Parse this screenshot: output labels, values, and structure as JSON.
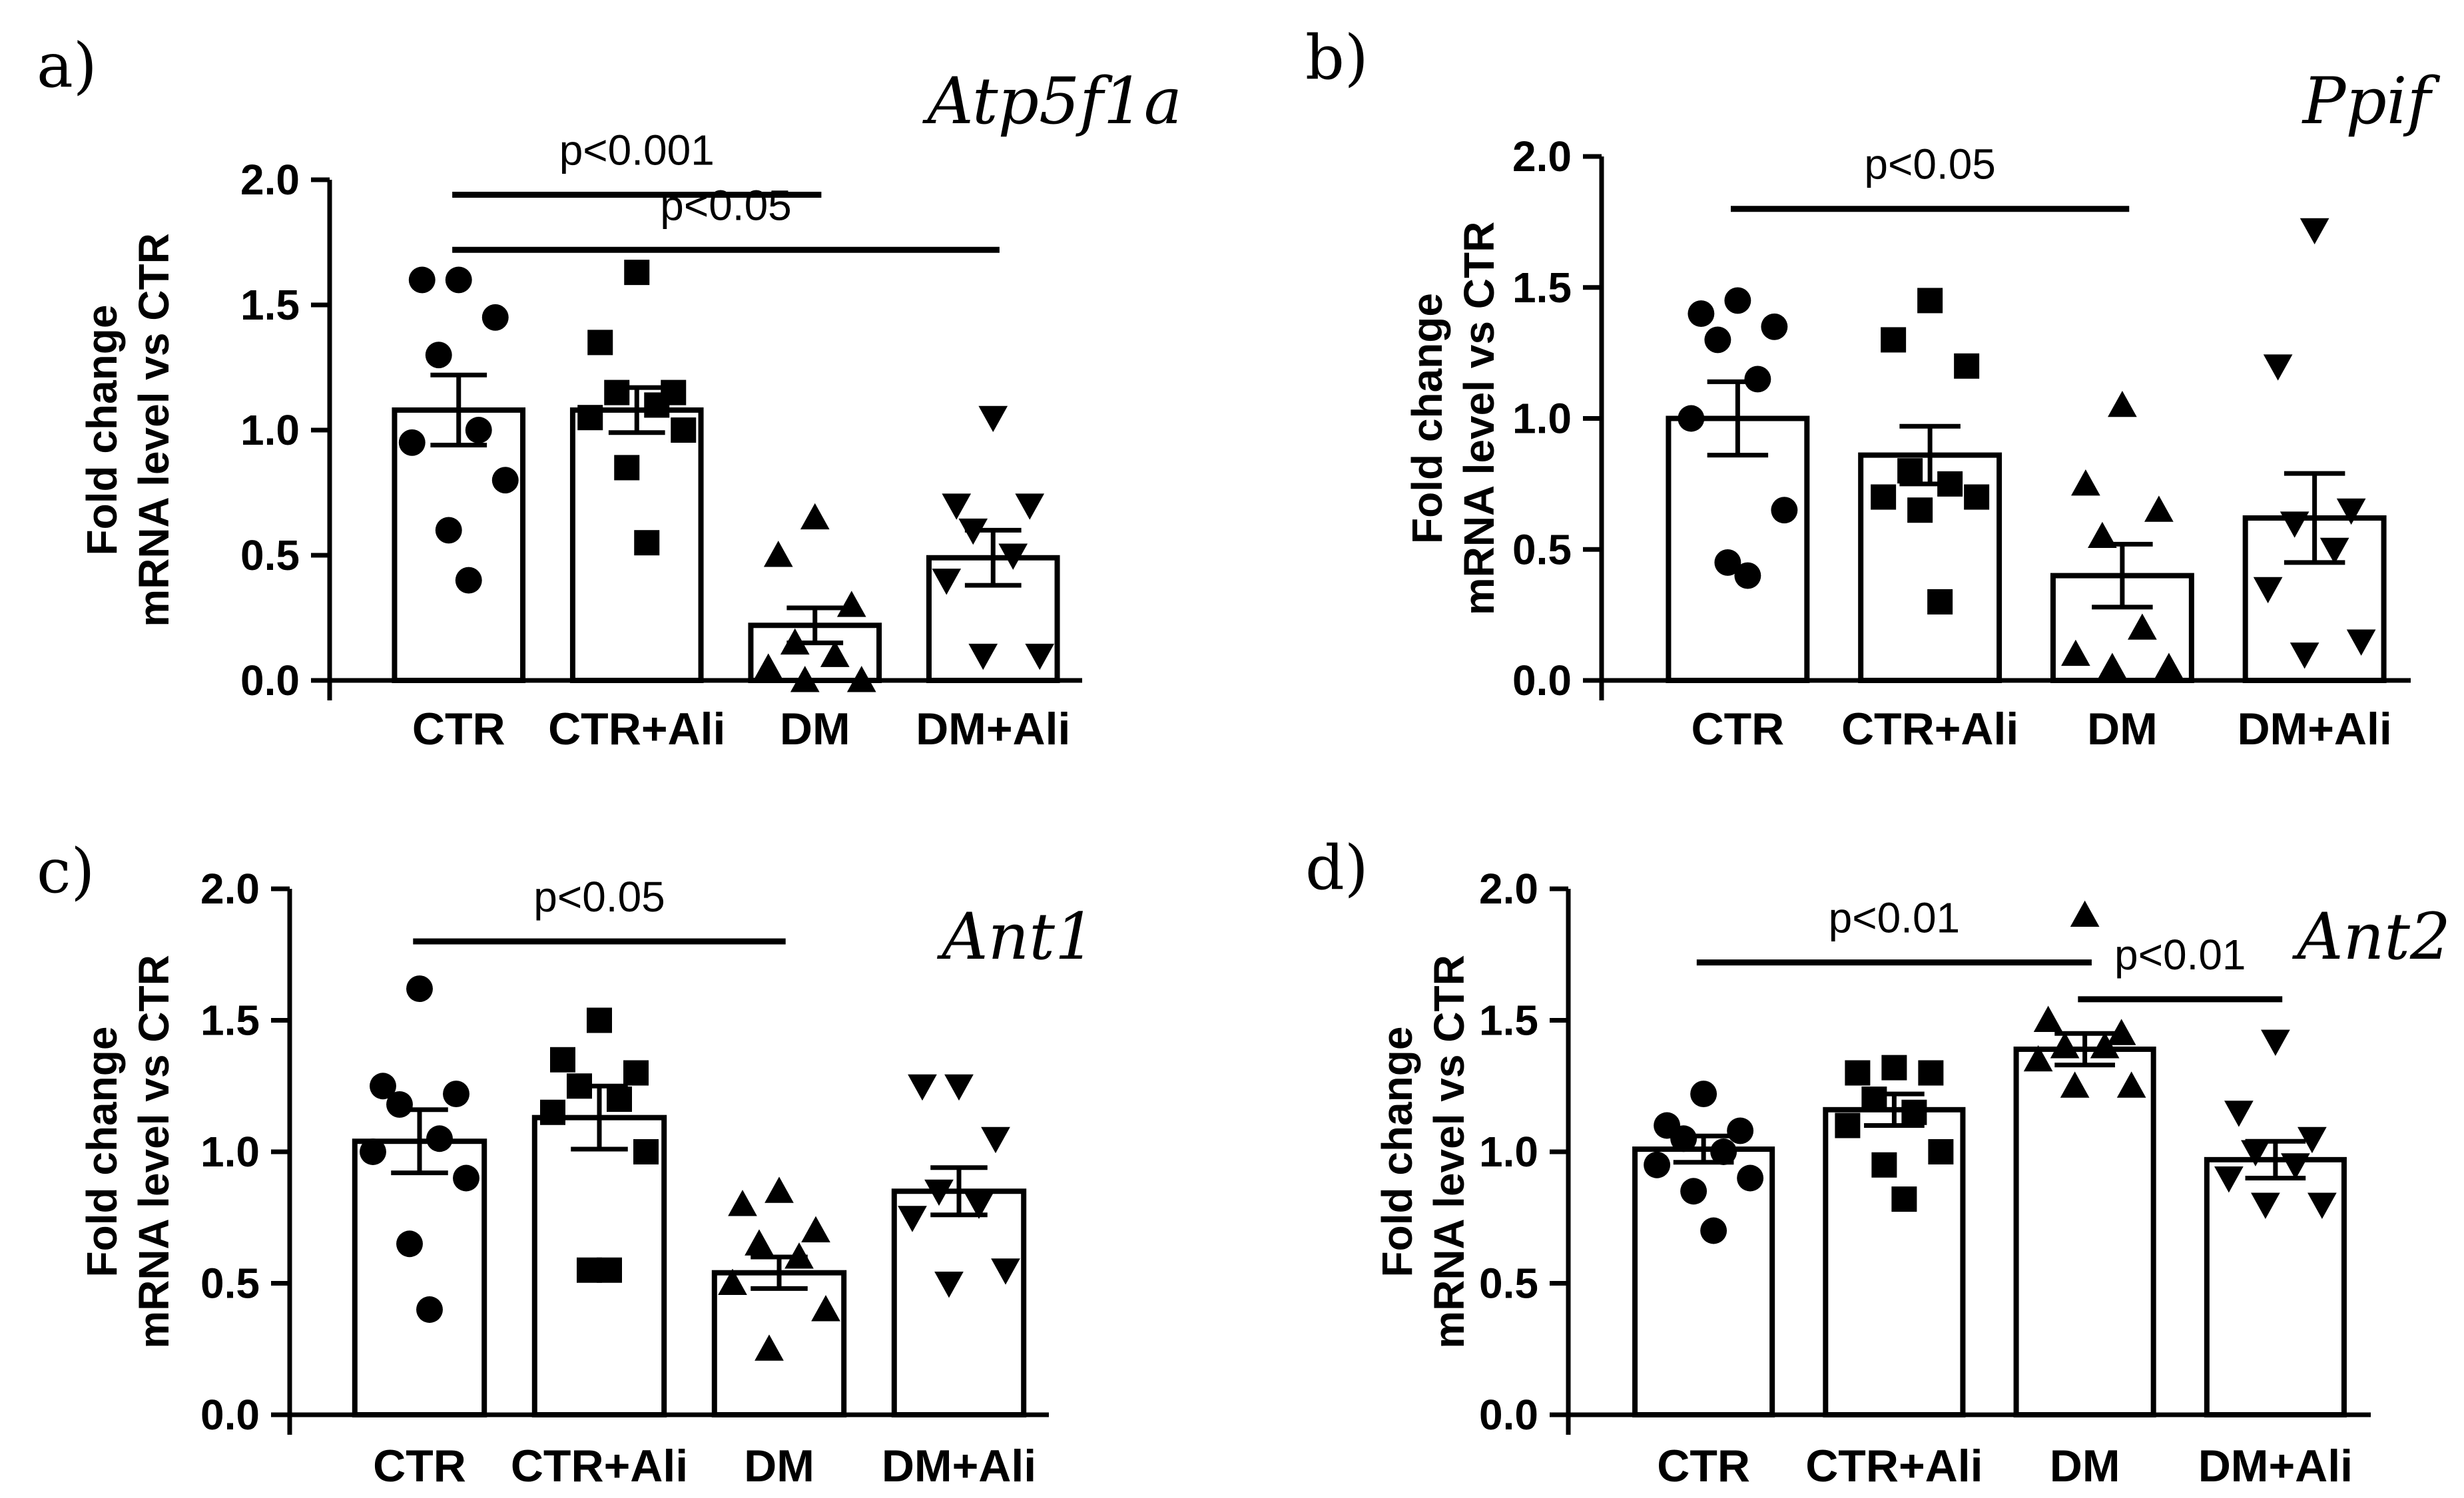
{
  "chart_data": [
    {
      "type": "bar",
      "panel": "a)",
      "title": "Atp5f1a",
      "ylabel": [
        "Fold change",
        "mRNA level vs CTR"
      ],
      "xlabel": "",
      "ylim": [
        0,
        2.0
      ],
      "yticks": [
        "0.0",
        "0.5",
        "1.0",
        "1.5",
        "2.0"
      ],
      "categories": [
        "CTR",
        "CTR+Ali",
        "DM",
        "DM+Ali"
      ],
      "values": [
        1.08,
        1.08,
        0.22,
        0.49
      ],
      "sem": [
        0.14,
        0.09,
        0.07,
        0.11
      ],
      "markers": [
        "circle",
        "square",
        "triangle-up",
        "triangle-down"
      ],
      "points": [
        [
          1.6,
          1.6,
          1.45,
          1.3,
          1.0,
          0.95,
          0.8,
          0.6,
          0.4
        ],
        [
          1.63,
          1.35,
          1.15,
          1.15,
          1.1,
          1.05,
          1.0,
          0.85,
          0.55
        ],
        [
          0.65,
          0.5,
          0.3,
          0.15,
          0.1,
          0.05,
          0.0,
          0.0
        ],
        [
          1.05,
          0.7,
          0.7,
          0.6,
          0.5,
          0.4,
          0.1,
          0.1
        ]
      ],
      "comparisons": [
        {
          "from": 0,
          "to": 2,
          "y": 1.94,
          "label": "p<0.001"
        },
        {
          "from": 0,
          "to": 3,
          "y": 1.72,
          "label": "p<0.05"
        }
      ]
    },
    {
      "type": "bar",
      "panel": "b)",
      "title": "Ppif",
      "ylabel": [
        "Fold change",
        "mRNA level vs CTR"
      ],
      "xlabel": "",
      "ylim": [
        0,
        2.0
      ],
      "yticks": [
        "0.0",
        "0.5",
        "1.0",
        "1.5",
        "2.0"
      ],
      "categories": [
        "CTR",
        "CTR+Ali",
        "DM",
        "DM+Ali"
      ],
      "values": [
        1.0,
        0.86,
        0.4,
        0.62
      ],
      "sem": [
        0.14,
        0.11,
        0.12,
        0.17
      ],
      "markers": [
        "circle",
        "square",
        "triangle-up",
        "triangle-down"
      ],
      "points": [
        [
          1.45,
          1.4,
          1.35,
          1.3,
          1.15,
          1.0,
          0.65,
          0.45,
          0.4
        ],
        [
          1.45,
          1.3,
          1.2,
          0.8,
          0.75,
          0.7,
          0.7,
          0.65,
          0.3
        ],
        [
          1.05,
          0.75,
          0.65,
          0.55,
          0.2,
          0.1,
          0.05,
          0.05
        ],
        [
          1.72,
          1.2,
          0.65,
          0.6,
          0.5,
          0.35,
          0.15,
          0.1
        ]
      ],
      "comparisons": [
        {
          "from": 0,
          "to": 2,
          "y": 1.8,
          "label": "p<0.05"
        }
      ]
    },
    {
      "type": "bar",
      "panel": "c)",
      "title": "Ant1",
      "ylabel": [
        "Fold change",
        "mRNA level vs CTR"
      ],
      "xlabel": "",
      "ylim": [
        0,
        2.0
      ],
      "yticks": [
        "0.0",
        "0.5",
        "1.0",
        "1.5",
        "2.0"
      ],
      "categories": [
        "CTR",
        "CTR+Ali",
        "DM",
        "DM+Ali"
      ],
      "values": [
        1.04,
        1.13,
        0.54,
        0.85
      ],
      "sem": [
        0.12,
        0.12,
        0.06,
        0.09
      ],
      "markers": [
        "circle",
        "square",
        "triangle-up",
        "triangle-down"
      ],
      "points": [
        [
          1.62,
          1.25,
          1.22,
          1.18,
          1.05,
          1.0,
          0.9,
          0.65,
          0.4
        ],
        [
          1.5,
          1.35,
          1.3,
          1.25,
          1.2,
          1.15,
          1.0,
          0.55,
          0.55
        ],
        [
          0.85,
          0.8,
          0.7,
          0.65,
          0.6,
          0.5,
          0.4,
          0.25
        ],
        [
          1.25,
          1.25,
          1.05,
          0.85,
          0.8,
          0.75,
          0.55,
          0.5
        ]
      ],
      "comparisons": [
        {
          "from": 0,
          "to": 2,
          "y": 1.8,
          "label": "p<0.05"
        }
      ]
    },
    {
      "type": "bar",
      "panel": "d)",
      "title": "Ant2",
      "ylabel": [
        "Fold change",
        "mRNA level vs CTR"
      ],
      "xlabel": "",
      "ylim": [
        0,
        2.0
      ],
      "yticks": [
        "0.0",
        "0.5",
        "1.0",
        "1.5",
        "2.0"
      ],
      "categories": [
        "CTR",
        "CTR+Ali",
        "DM",
        "DM+Ali"
      ],
      "values": [
        1.01,
        1.16,
        1.39,
        0.97
      ],
      "sem": [
        0.05,
        0.06,
        0.06,
        0.07
      ],
      "markers": [
        "circle",
        "square",
        "triangle-up",
        "triangle-down"
      ],
      "points": [
        [
          1.22,
          1.1,
          1.08,
          1.05,
          1.0,
          0.95,
          0.9,
          0.85,
          0.7
        ],
        [
          1.32,
          1.3,
          1.3,
          1.2,
          1.15,
          1.1,
          1.0,
          0.95,
          0.82
        ],
        [
          1.9,
          1.5,
          1.45,
          1.4,
          1.4,
          1.35,
          1.25,
          1.25
        ],
        [
          1.42,
          1.15,
          1.05,
          1.0,
          0.95,
          0.9,
          0.8,
          0.8
        ]
      ],
      "comparisons": [
        {
          "from": 0,
          "to": 2,
          "y": 1.72,
          "label": "p<0.01"
        },
        {
          "from": 2,
          "to": 3,
          "y": 1.58,
          "label": "p<0.01"
        }
      ]
    }
  ]
}
